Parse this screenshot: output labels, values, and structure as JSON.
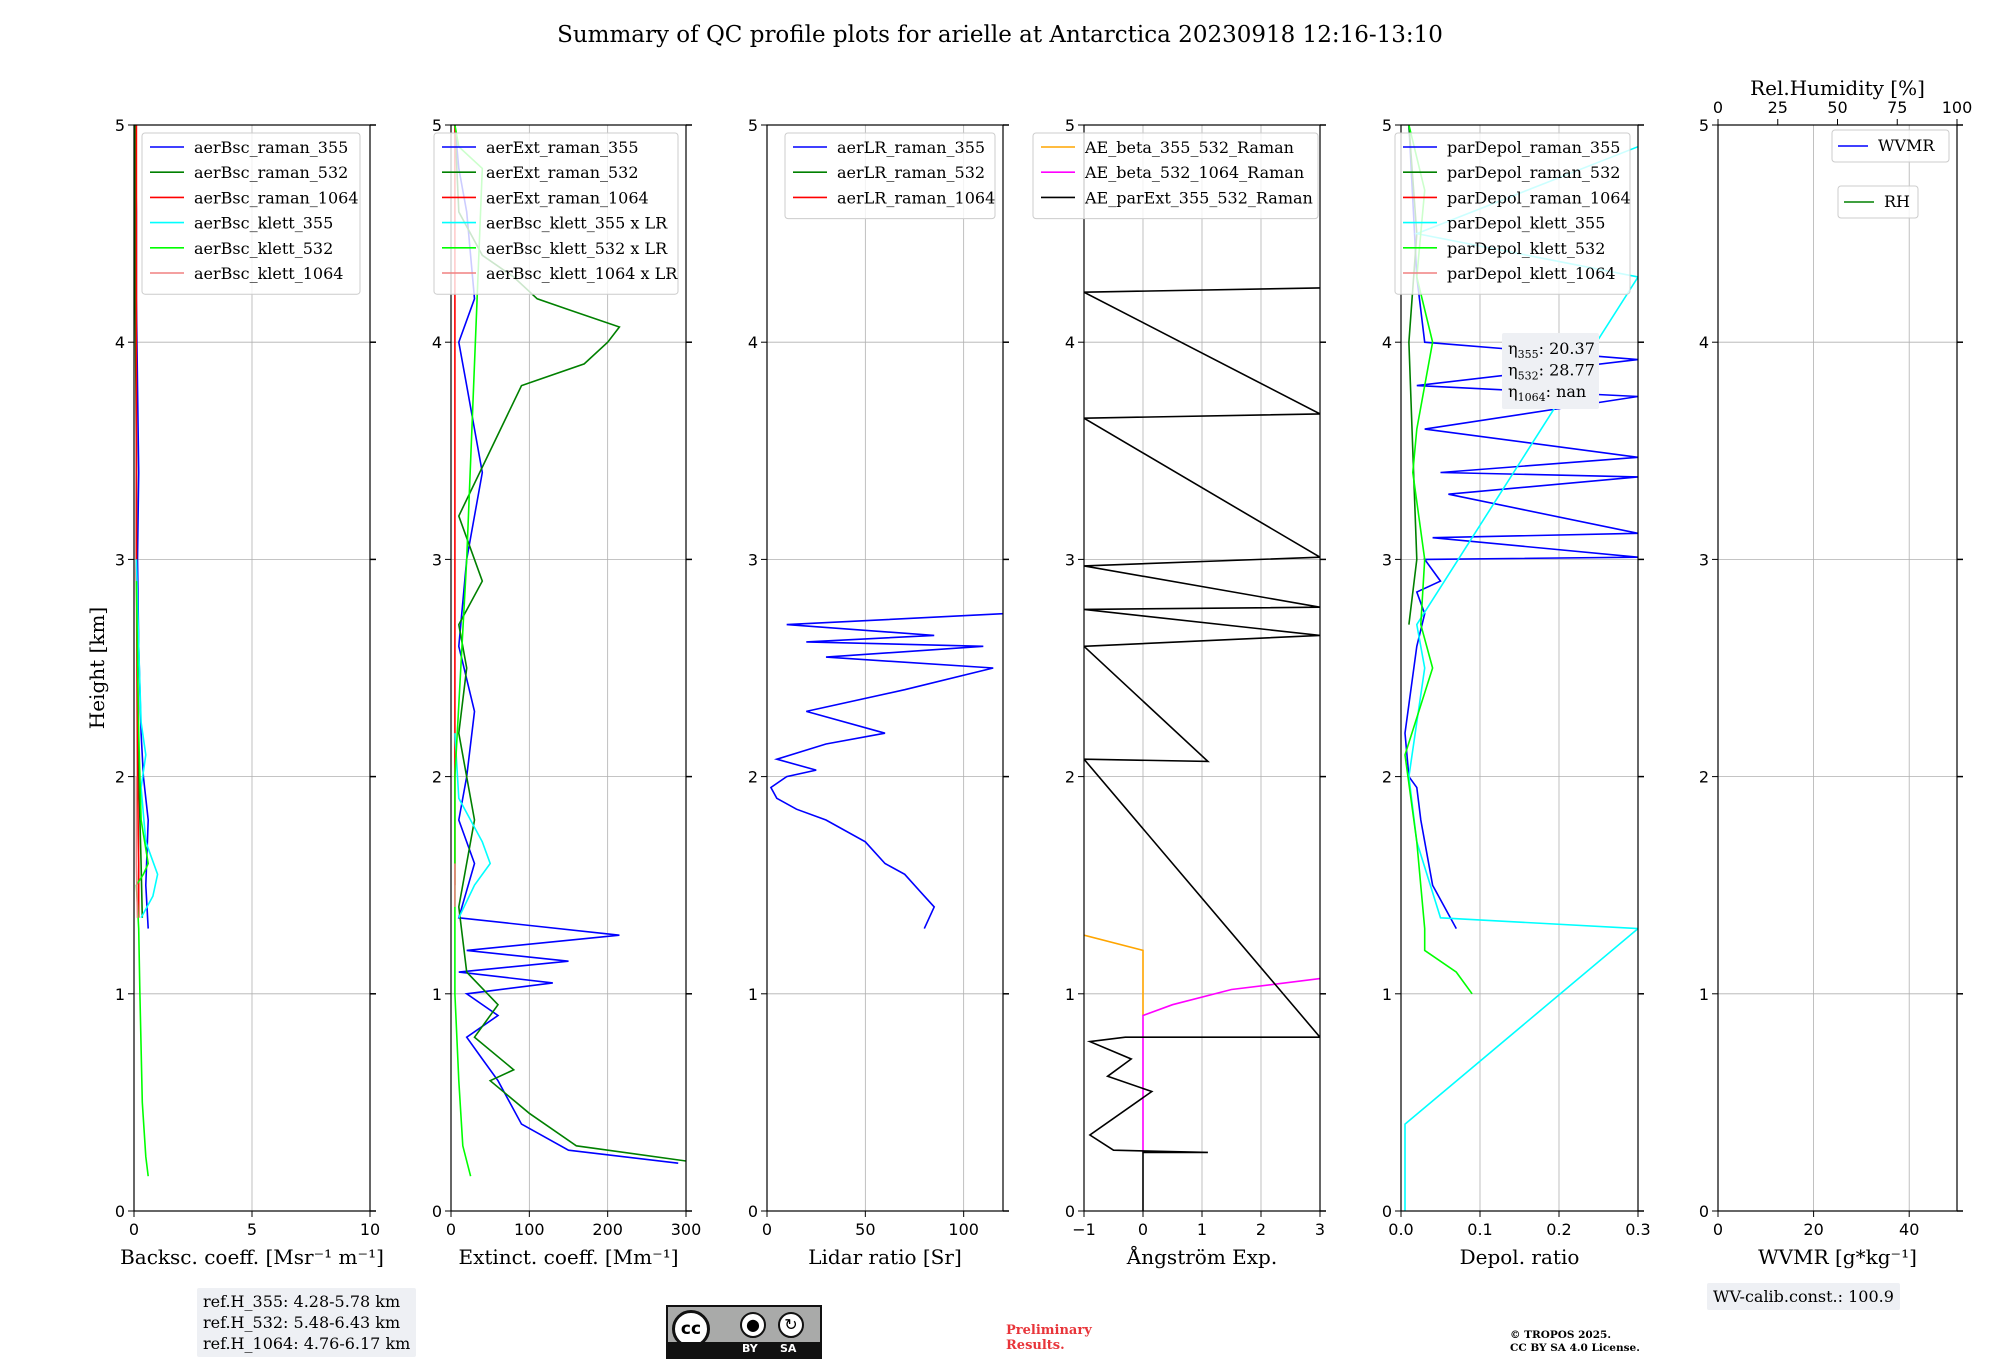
{
  "title": "Summary of QC profile plots for arielle at Antarctica 20230918 12:16-13:10",
  "chart_data": [
    {
      "type": "line",
      "panel": "backscatter",
      "xlabel": "Backsc. coeff. [Msr⁻¹ m⁻¹]",
      "ylabel": "Height [km]",
      "xlim": [
        0,
        10
      ],
      "ylim": [
        0,
        5
      ],
      "xticks": [
        0,
        5,
        10
      ],
      "yticks": [
        0,
        1,
        2,
        3,
        4,
        5
      ],
      "grid": true,
      "legend_position": "top-right",
      "series": [
        {
          "name": "aerBsc_raman_355",
          "color": "#0000ff",
          "x": [
            0.6,
            0.5,
            0.6,
            0.4,
            0.3,
            0.2,
            0.15,
            0.2,
            0.15,
            0.1,
            0.1,
            0.05
          ],
          "y": [
            1.3,
            1.5,
            1.8,
            2.0,
            2.2,
            2.6,
            3.0,
            3.4,
            3.8,
            4.2,
            4.6,
            5.0
          ]
        },
        {
          "name": "aerBsc_raman_532",
          "color": "#008000",
          "x": [
            0.35,
            0.3,
            0.2,
            0.15,
            0.1,
            0.1,
            0.05,
            0.05
          ],
          "y": [
            1.35,
            1.6,
            2.0,
            2.5,
            3.0,
            3.5,
            4.2,
            5.0
          ]
        },
        {
          "name": "aerBsc_raman_1064",
          "color": "#ff0000",
          "x": [
            0.2,
            0.2,
            0.15,
            0.1,
            0.1
          ],
          "y": [
            1.35,
            1.6,
            2.0,
            3.0,
            5.0
          ]
        },
        {
          "name": "aerBsc_klett_355",
          "color": "#00ffff",
          "x": [
            0.3,
            0.8,
            1.0,
            0.5,
            0.3,
            0.5,
            0.3,
            0.2,
            0.1
          ],
          "y": [
            1.35,
            1.45,
            1.55,
            1.7,
            1.95,
            2.1,
            2.25,
            2.6,
            3.0
          ]
        },
        {
          "name": "aerBsc_klett_532",
          "color": "#00ff00",
          "x": [
            0.6,
            0.5,
            0.35,
            0.25,
            0.2,
            0.1,
            0.4,
            0.6,
            0.3,
            0.2,
            0.1
          ],
          "y": [
            0.16,
            0.25,
            0.5,
            1.0,
            1.3,
            1.5,
            1.55,
            1.6,
            1.8,
            2.2,
            2.9
          ]
        },
        {
          "name": "aerBsc_klett_1064",
          "color": "#f08080",
          "x": [
            0.15,
            0.1,
            0.1
          ],
          "y": [
            1.35,
            1.6,
            2.0
          ]
        }
      ]
    },
    {
      "type": "line",
      "panel": "extinction",
      "xlabel": "Extinct. coeff. [Mm⁻¹]",
      "xlim": [
        0,
        300
      ],
      "ylim": [
        0,
        5
      ],
      "xticks": [
        0,
        100,
        200,
        300
      ],
      "yticks": [
        0,
        1,
        2,
        3,
        4,
        5
      ],
      "grid": true,
      "legend_position": "top-right",
      "series": [
        {
          "name": "aerExt_raman_355",
          "color": "#0000ff",
          "x": [
            290,
            150,
            90,
            60,
            40,
            20,
            60,
            20,
            130,
            10,
            150,
            20,
            215,
            10,
            30,
            10,
            20,
            30,
            10,
            20,
            40,
            30,
            20,
            10,
            30,
            20,
            10,
            5
          ],
          "y": [
            0.22,
            0.28,
            0.4,
            0.6,
            0.7,
            0.8,
            0.9,
            1.0,
            1.05,
            1.1,
            1.15,
            1.2,
            1.27,
            1.35,
            1.6,
            1.8,
            2.0,
            2.3,
            2.6,
            3.0,
            3.4,
            3.6,
            3.8,
            4.0,
            4.2,
            4.6,
            4.8,
            5.0
          ]
        },
        {
          "name": "aerExt_raman_532",
          "color": "#008000",
          "x": [
            300,
            160,
            100,
            50,
            80,
            30,
            60,
            20,
            10,
            30,
            10,
            20,
            10,
            40,
            10,
            90,
            170,
            200,
            215,
            150,
            110,
            80,
            40,
            10,
            5
          ],
          "y": [
            0.23,
            0.3,
            0.45,
            0.6,
            0.65,
            0.8,
            0.95,
            1.1,
            1.4,
            1.8,
            2.2,
            2.5,
            2.7,
            2.9,
            3.2,
            3.8,
            3.9,
            4.0,
            4.07,
            4.15,
            4.2,
            4.3,
            4.4,
            4.6,
            5.0
          ]
        },
        {
          "name": "aerExt_raman_1064",
          "color": "#ff0000",
          "x": [
            5,
            5,
            5
          ],
          "y": [
            1.5,
            3.0,
            5.0
          ]
        },
        {
          "name": "aerBsc_klett_355 x LR",
          "color": "#00ffff",
          "x": [
            10,
            30,
            50,
            40,
            10,
            5
          ],
          "y": [
            1.35,
            1.5,
            1.6,
            1.7,
            1.9,
            2.2
          ]
        },
        {
          "name": "aerBsc_klett_532 x LR",
          "color": "#00ff00",
          "x": [
            25,
            15,
            10,
            5,
            5,
            20,
            40,
            10,
            5
          ],
          "y": [
            0.16,
            0.3,
            0.6,
            1.0,
            2.0,
            3.0,
            4.8,
            4.9,
            5.0
          ]
        },
        {
          "name": "aerBsc_klett_1064 x LR",
          "color": "#f08080",
          "x": [
            5,
            5
          ],
          "y": [
            1.4,
            1.6
          ]
        }
      ]
    },
    {
      "type": "line",
      "panel": "lidar_ratio",
      "xlabel": "Lidar ratio [Sr]",
      "xlim": [
        0,
        120
      ],
      "ylim": [
        0,
        5
      ],
      "xticks": [
        0,
        50,
        100
      ],
      "yticks": [
        0,
        1,
        2,
        3,
        4,
        5
      ],
      "grid": true,
      "legend_position": "top-right",
      "series": [
        {
          "name": "aerLR_raman_355",
          "color": "#0000ff",
          "x": [
            80,
            85,
            80,
            70,
            60,
            50,
            30,
            15,
            5,
            2,
            10,
            25,
            5,
            30,
            60,
            20,
            70,
            115,
            30,
            110,
            20,
            85,
            10,
            120
          ],
          "y": [
            1.3,
            1.4,
            1.45,
            1.55,
            1.6,
            1.7,
            1.8,
            1.85,
            1.9,
            1.95,
            2.0,
            2.03,
            2.08,
            2.15,
            2.2,
            2.3,
            2.4,
            2.5,
            2.55,
            2.6,
            2.62,
            2.65,
            2.7,
            2.75
          ]
        },
        {
          "name": "aerLR_raman_532",
          "color": "#008000",
          "x": [],
          "y": []
        },
        {
          "name": "aerLR_raman_1064",
          "color": "#ff0000",
          "x": [],
          "y": []
        }
      ]
    },
    {
      "type": "line",
      "panel": "angstrom",
      "xlabel": "Ångström Exp.",
      "xlim": [
        -1,
        3
      ],
      "ylim": [
        0,
        5
      ],
      "xticks": [
        -1,
        0,
        1,
        2,
        3
      ],
      "yticks": [
        0,
        1,
        2,
        3,
        4,
        5
      ],
      "grid": true,
      "legend_position": "top-left",
      "series": [
        {
          "name": "AE_beta_355_532_Raman",
          "color": "#ffa500",
          "x": [
            -1,
            0,
            0
          ],
          "y": [
            1.27,
            1.2,
            0.9
          ]
        },
        {
          "name": "AE_beta_532_1064_Raman",
          "color": "#ff00ff",
          "x": [
            0,
            0,
            0.5,
            1.5,
            3
          ],
          "y": [
            0.27,
            0.9,
            0.95,
            1.02,
            1.07
          ]
        },
        {
          "name": "AE_parExt_355_532_Raman",
          "color": "#000000",
          "x": [
            0,
            0,
            1.1,
            -0.5,
            -0.9,
            0.15,
            -0.6,
            -0.2,
            -0.9,
            -0.3,
            3,
            -1,
            1.1,
            -1,
            3,
            -1,
            3,
            -1,
            3,
            -1,
            3,
            -1,
            3
          ],
          "y": [
            0,
            0.27,
            0.27,
            0.28,
            0.35,
            0.55,
            0.62,
            0.7,
            0.78,
            0.8,
            0.8,
            2.08,
            2.07,
            2.6,
            2.65,
            2.77,
            2.78,
            2.97,
            3.01,
            3.65,
            3.67,
            4.23,
            4.25
          ]
        }
      ]
    },
    {
      "type": "line",
      "panel": "depolarization",
      "xlabel": "Depol. ratio",
      "xlim": [
        0,
        0.3
      ],
      "ylim": [
        0,
        5
      ],
      "xticks": [
        0.0,
        0.1,
        0.2,
        0.3
      ],
      "yticks": [
        0,
        1,
        2,
        3,
        4,
        5
      ],
      "grid": true,
      "legend_position": "top-right",
      "annotations": [
        {
          "label": "η",
          "subscript": "355",
          "value": ": 20.37"
        },
        {
          "label": "η",
          "subscript": "532",
          "value": ": 28.77"
        },
        {
          "label": "η",
          "subscript": "1064",
          "value": ": nan"
        }
      ],
      "series": [
        {
          "name": "parDepol_raman_355",
          "color": "#0000ff",
          "x": [
            0.07,
            0.04,
            0.025,
            0.02,
            0.01,
            0.005,
            0.02,
            0.03,
            0.02,
            0.05,
            0.03,
            0.3,
            0.04,
            0.3,
            0.06,
            0.3,
            0.05,
            0.3,
            0.03,
            0.3,
            0.02,
            0.3,
            0.03,
            0.02,
            0.01
          ],
          "y": [
            1.3,
            1.5,
            1.8,
            1.95,
            2.0,
            2.2,
            2.6,
            2.75,
            2.85,
            2.9,
            3.0,
            3.01,
            3.1,
            3.12,
            3.3,
            3.38,
            3.4,
            3.47,
            3.6,
            3.75,
            3.8,
            3.92,
            4.0,
            4.3,
            5.0
          ]
        },
        {
          "name": "parDepol_raman_532",
          "color": "#008000",
          "x": [
            0.01,
            0.02,
            0.015,
            0.01,
            0.02,
            0.01
          ],
          "y": [
            2.7,
            3.0,
            3.5,
            4.0,
            4.5,
            5.0
          ]
        },
        {
          "name": "parDepol_raman_1064",
          "color": "#ff0000",
          "x": [],
          "y": []
        },
        {
          "name": "parDepol_klett_355",
          "color": "#00ffff",
          "x": [
            0.005,
            0.005,
            0.3,
            0.05,
            0.02,
            0.01,
            0.03,
            0.02,
            0.3,
            0.02,
            0.3
          ],
          "y": [
            0.0,
            0.4,
            1.3,
            1.35,
            1.7,
            2.0,
            2.5,
            2.7,
            4.3,
            4.5,
            4.9
          ]
        },
        {
          "name": "parDepol_klett_532",
          "color": "#00ff00",
          "x": [
            0.09,
            0.07,
            0.03,
            0.03,
            0.02,
            0.005,
            0.04,
            0.025,
            0.03,
            0.015,
            0.02,
            0.04,
            0.02,
            0.03,
            0.01
          ],
          "y": [
            1.0,
            1.1,
            1.2,
            1.3,
            1.7,
            2.1,
            2.5,
            2.7,
            3.0,
            3.4,
            3.6,
            4.0,
            4.3,
            4.7,
            5.0
          ]
        },
        {
          "name": "parDepol_klett_1064",
          "color": "#f08080",
          "x": [],
          "y": []
        }
      ]
    },
    {
      "type": "line",
      "panel": "wvmr_rh",
      "xlabel": "WVMR [g*kg⁻¹]",
      "top_xlabel": "Rel.Humidity [%]",
      "xlim": [
        0,
        50
      ],
      "ylim": [
        0,
        5
      ],
      "xticks": [
        0,
        20,
        40
      ],
      "top_xticks": [
        0,
        25,
        50,
        75,
        100
      ],
      "top_xlim": [
        0,
        100
      ],
      "yticks": [
        0,
        1,
        2,
        3,
        4,
        5
      ],
      "grid": true,
      "legend_position": "top-right",
      "series": [
        {
          "name": "WVMR",
          "color": "#0000ff",
          "x": [],
          "y": []
        },
        {
          "name": "RH",
          "color": "#008000",
          "x": [],
          "y": []
        }
      ]
    }
  ],
  "notes": {
    "ref_h": [
      "ref.H_355: 4.28-5.78 km",
      "ref.H_532: 5.48-6.43 km",
      "ref.H_1064: 4.76-6.17 km"
    ],
    "wv_calib": "WV-calib.const.: 100.9"
  },
  "license_badge": {
    "cc": "cc",
    "by": "BY",
    "sa": "SA"
  },
  "preliminary": [
    "Preliminary",
    "Results."
  ],
  "copyright": [
    "© TROPOS 2025.",
    "CC BY SA 4.0 License."
  ]
}
